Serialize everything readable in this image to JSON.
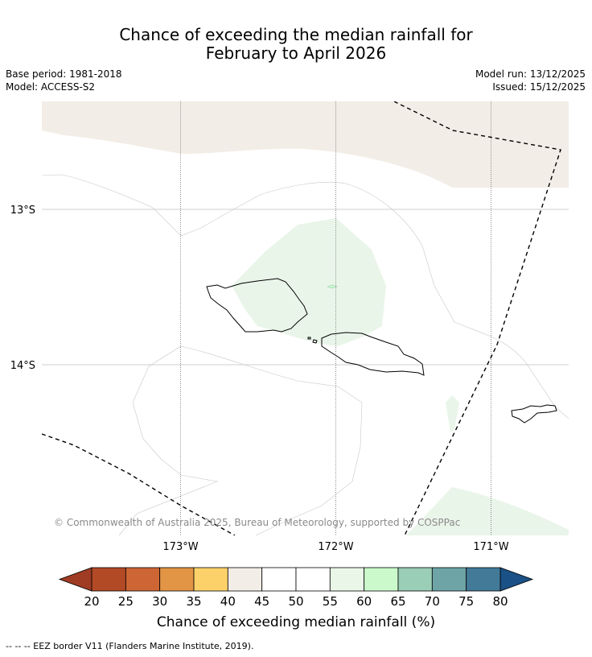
{
  "title": {
    "line1": "Chance of exceeding the median rainfall for",
    "line2": "February to April 2026"
  },
  "meta": {
    "base_period": "Base period: 1981-2018",
    "model": "Model: ACCESS-S2",
    "model_run": "Model run: 13/12/2025",
    "issued": "Issued: 15/12/2025"
  },
  "map": {
    "lat_labels": [
      "13°S",
      "14°S"
    ],
    "lon_labels": [
      "173°W",
      "172°W",
      "171°W"
    ],
    "copyright": "© Commonwealth of Australia 2025, Bureau of Meteorology, supported by COSPPac"
  },
  "colorbar": {
    "label": "Chance of exceeding median rainfall (%)",
    "ticks": [
      "20",
      "25",
      "30",
      "35",
      "40",
      "45",
      "50",
      "55",
      "60",
      "65",
      "70",
      "75",
      "80"
    ],
    "under_color": "#a03c24",
    "over_color": "#1a5186",
    "colors": [
      "#b24a26",
      "#cd6634",
      "#e19545",
      "#fcd16a",
      "#f2ede6",
      "#ffffff",
      "#ffffff",
      "#e9f6e8",
      "#cbf9cc",
      "#9bceb6",
      "#6ea4a6",
      "#427a98"
    ]
  },
  "footnote": "--  --  -- EEZ border V11 (Flanders Marine Institute, 2019)."
}
